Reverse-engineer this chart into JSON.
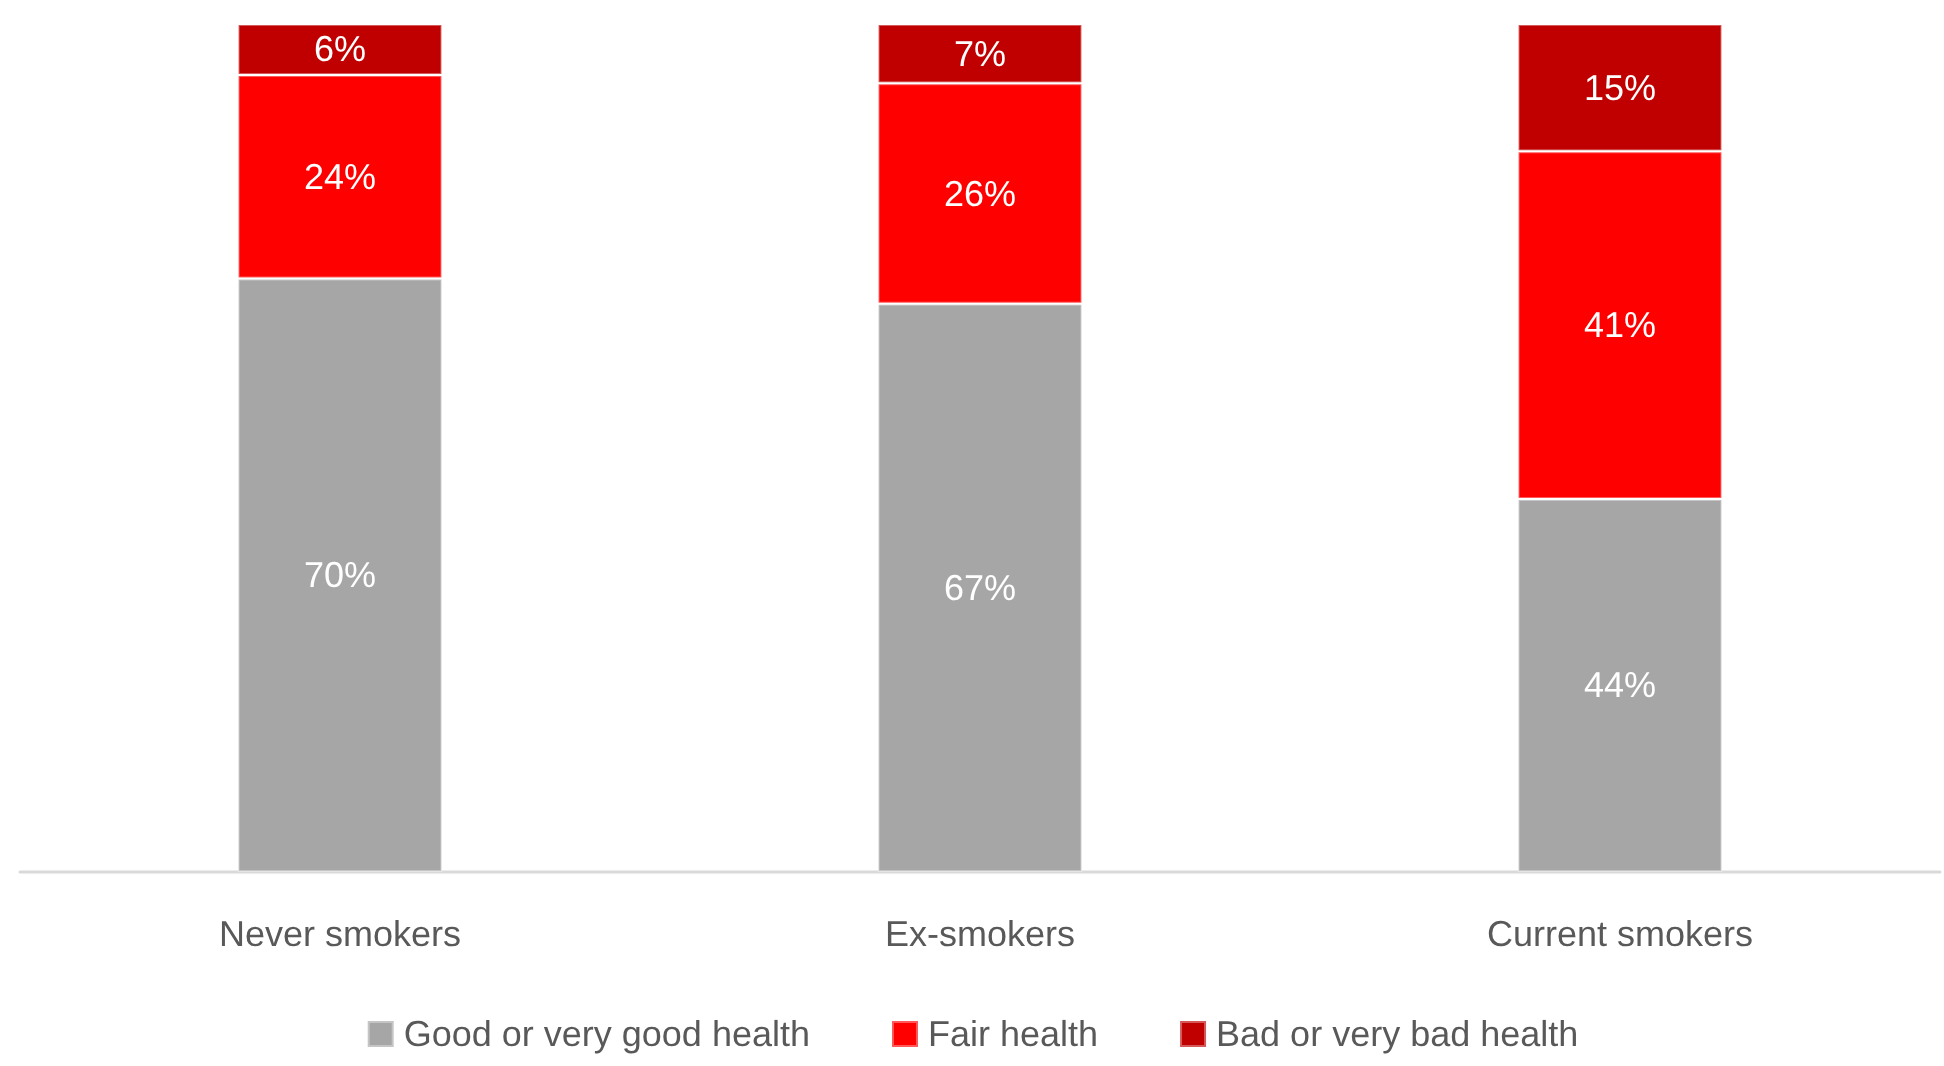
{
  "chart_data": {
    "type": "bar",
    "stacked": true,
    "categories": [
      "Never smokers",
      "Ex-smokers",
      "Current smokers"
    ],
    "series": [
      {
        "name": "Good or very good health",
        "color": "#a6a6a6",
        "values": [
          70,
          67,
          44
        ],
        "value_labels": [
          "70%",
          "67%",
          "44%"
        ]
      },
      {
        "name": "Fair health",
        "color": "#ff0000",
        "values": [
          24,
          26,
          41
        ],
        "value_labels": [
          "24%",
          "26%",
          "41%"
        ]
      },
      {
        "name": "Bad or very bad health",
        "color": "#c00000",
        "values": [
          6,
          7,
          15
        ],
        "value_labels": [
          "6%",
          "7%",
          "15%"
        ]
      }
    ],
    "legend": "bottom"
  }
}
